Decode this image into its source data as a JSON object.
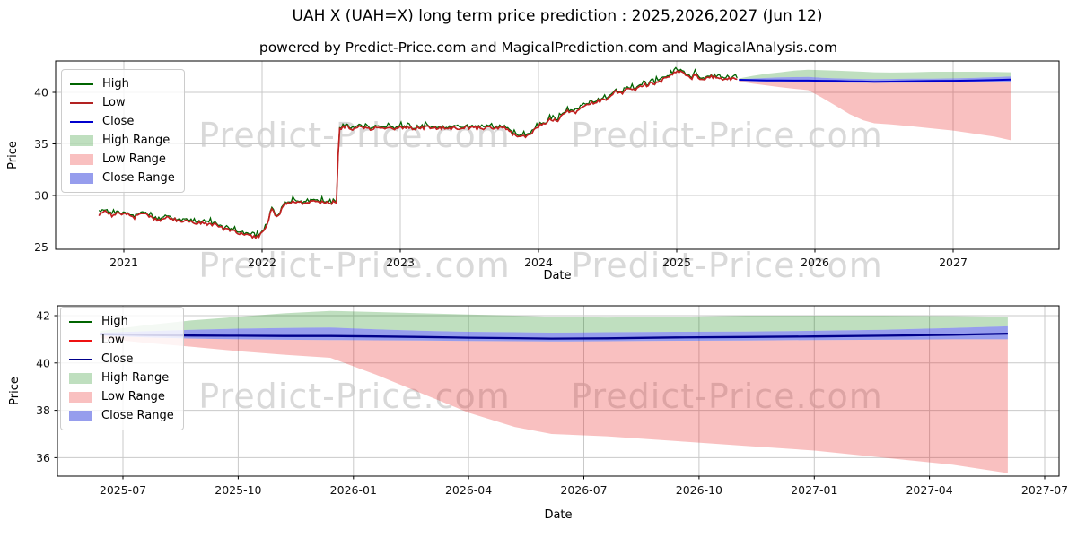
{
  "header": {
    "title": "UAH X (UAH=X) long term price prediction : 2025,2026,2027 (Jun 12)",
    "subtitle": "powered by Predict-Price.com and MagicalPrediction.com and MagicalAnalysis.com"
  },
  "watermark": {
    "text": "Predict-Price.com"
  },
  "colors": {
    "grid": "#c9c9c9",
    "axis": "#000000",
    "high_line": "#006400",
    "low_line_top": "#c22020",
    "low_line_bottom": "#ee1111",
    "close_line_top": "#0000cd",
    "close_line_bottom": "#00008b",
    "high_range_fill": "rgba(0,128,0,0.25)",
    "low_range_fill": "rgba(235,30,30,0.28)",
    "close_range_fill": "rgba(45,60,220,0.5)"
  },
  "chart_data": [
    {
      "name": "long-term-history-and-forecast",
      "type": "line",
      "title": "",
      "xlabel": "Date",
      "ylabel": "Price",
      "x_unit": "decimal_year",
      "xlim": [
        2020.5,
        2027.77
      ],
      "ylim": [
        24.8,
        43.05
      ],
      "grid": true,
      "legend_position": "upper-left",
      "xticks": {
        "values": [
          2021,
          2022,
          2023,
          2024,
          2025,
          2026,
          2027
        ],
        "labels": [
          "2021",
          "2022",
          "2023",
          "2024",
          "2025",
          "2026",
          "2027"
        ]
      },
      "yticks": {
        "values": [
          25,
          30,
          35,
          40
        ],
        "labels": [
          "25",
          "30",
          "35",
          "40"
        ]
      },
      "legend": [
        {
          "label": "High",
          "swatch": "line",
          "color": "#006400"
        },
        {
          "label": "Low",
          "swatch": "line",
          "color": "#b22222"
        },
        {
          "label": "Close",
          "swatch": "line",
          "color": "#0000cd"
        },
        {
          "label": "High Range",
          "swatch": "patch",
          "color": "rgba(0,128,0,0.25)"
        },
        {
          "label": "Low Range",
          "swatch": "patch",
          "color": "rgba(235,30,30,0.28)"
        },
        {
          "label": "Close Range",
          "swatch": "patch",
          "color": "rgba(45,60,220,0.5)"
        }
      ],
      "history": {
        "note": "High/Low/Close nearly coincide at this scale; values are the Close keypoints",
        "x": [
          2020.82,
          2020.87,
          2020.92,
          2020.97,
          2021.02,
          2021.07,
          2021.12,
          2021.17,
          2021.22,
          2021.27,
          2021.32,
          2021.37,
          2021.42,
          2021.47,
          2021.52,
          2021.57,
          2021.62,
          2021.67,
          2021.72,
          2021.77,
          2021.82,
          2021.87,
          2021.92,
          2021.97,
          2022.0,
          2022.04,
          2022.07,
          2022.1,
          2022.13,
          2022.16,
          2022.2,
          2022.25,
          2022.3,
          2022.36,
          2022.42,
          2022.48,
          2022.53,
          2022.545,
          2022.553,
          2022.6,
          2022.65,
          2022.7,
          2022.78,
          2022.85,
          2022.92,
          2023.0,
          2023.1,
          2023.2,
          2023.3,
          2023.4,
          2023.5,
          2023.6,
          2023.7,
          2023.75,
          2023.8,
          2023.85,
          2023.9,
          2023.95,
          2024.0,
          2024.05,
          2024.1,
          2024.14,
          2024.18,
          2024.22,
          2024.26,
          2024.3,
          2024.35,
          2024.4,
          2024.45,
          2024.5,
          2024.55,
          2024.6,
          2024.65,
          2024.68,
          2024.72,
          2024.78,
          2024.84,
          2024.9,
          2024.95,
          2025.0,
          2025.03,
          2025.06,
          2025.1,
          2025.14,
          2025.18,
          2025.22,
          2025.26,
          2025.3,
          2025.35,
          2025.4,
          2025.44
        ],
        "close": [
          28.2,
          28.45,
          28.0,
          28.3,
          28.2,
          27.8,
          28.25,
          28.2,
          27.7,
          27.6,
          27.9,
          27.65,
          27.4,
          27.55,
          27.2,
          27.4,
          27.1,
          27.25,
          26.7,
          26.6,
          26.45,
          26.2,
          26.05,
          26.0,
          26.3,
          27.2,
          28.8,
          27.8,
          28.3,
          29.3,
          29.25,
          29.4,
          29.3,
          29.45,
          29.3,
          29.35,
          29.3,
          29.4,
          36.5,
          36.7,
          36.5,
          36.6,
          36.5,
          36.6,
          36.45,
          36.55,
          36.5,
          36.6,
          36.5,
          36.55,
          36.6,
          36.5,
          36.6,
          36.55,
          36.1,
          35.7,
          35.75,
          36.1,
          36.7,
          37.1,
          37.4,
          37.2,
          37.9,
          38.2,
          38.0,
          38.4,
          38.8,
          39.0,
          39.2,
          39.35,
          40.15,
          39.9,
          40.3,
          40.1,
          40.5,
          40.7,
          40.9,
          41.2,
          41.6,
          42.0,
          42.15,
          41.8,
          41.3,
          41.7,
          41.2,
          41.45,
          41.55,
          41.3,
          41.4,
          41.3,
          41.3
        ]
      },
      "forecast": {
        "x": [
          2025.45,
          2025.55,
          2025.65,
          2025.75,
          2025.85,
          2025.95,
          2026.05,
          2026.15,
          2026.25,
          2026.35,
          2026.43,
          2026.55,
          2026.7,
          2026.85,
          2027.0,
          2027.15,
          2027.3,
          2027.42
        ],
        "close": [
          41.22,
          41.18,
          41.16,
          41.15,
          41.14,
          41.14,
          41.12,
          41.1,
          41.07,
          41.05,
          41.03,
          41.04,
          41.08,
          41.1,
          41.12,
          41.15,
          41.19,
          41.24
        ],
        "close_upper": [
          41.28,
          41.34,
          41.4,
          41.45,
          41.48,
          41.5,
          41.42,
          41.36,
          41.32,
          41.3,
          41.28,
          41.3,
          41.32,
          41.33,
          41.36,
          41.4,
          41.48,
          41.55
        ],
        "close_lower": [
          41.15,
          41.08,
          41.03,
          41.0,
          40.98,
          40.97,
          40.96,
          40.95,
          40.93,
          40.92,
          40.91,
          40.92,
          40.94,
          40.95,
          40.97,
          40.98,
          41.0,
          41.0
        ],
        "high_upper": [
          41.35,
          41.6,
          41.8,
          41.95,
          42.1,
          42.2,
          42.15,
          42.1,
          42.05,
          42.0,
          41.95,
          41.92,
          41.95,
          42.0,
          42.0,
          42.0,
          41.98,
          41.95
        ],
        "low_lower": [
          41.05,
          40.85,
          40.68,
          40.5,
          40.35,
          40.22,
          39.5,
          38.7,
          37.9,
          37.3,
          37.0,
          36.9,
          36.7,
          36.5,
          36.3,
          36.0,
          35.7,
          35.35
        ]
      }
    },
    {
      "name": "forecast-zoom",
      "type": "line",
      "title": "",
      "xlabel": "Date",
      "ylabel": "Price",
      "x_unit": "decimal_year",
      "xlim": [
        2025.36,
        2027.51
      ],
      "ylim": [
        35.2,
        42.42
      ],
      "grid": true,
      "legend_position": "upper-left",
      "xticks": {
        "values": [
          2025.5,
          2025.75,
          2026.0,
          2026.25,
          2026.5,
          2026.75,
          2027.0,
          2027.25,
          2027.5
        ],
        "labels": [
          "2025-07",
          "2025-10",
          "2026-01",
          "2026-04",
          "2026-07",
          "2026-10",
          "2027-01",
          "2027-04",
          "2027-07"
        ]
      },
      "yticks": {
        "values": [
          36,
          38,
          40,
          42
        ],
        "labels": [
          "36",
          "38",
          "40",
          "42"
        ]
      },
      "legend": [
        {
          "label": "High",
          "swatch": "line",
          "color": "#006400"
        },
        {
          "label": "Low",
          "swatch": "line",
          "color": "#ee1111"
        },
        {
          "label": "Close",
          "swatch": "line",
          "color": "#00008b"
        },
        {
          "label": "High Range",
          "swatch": "patch",
          "color": "rgba(0,128,0,0.25)"
        },
        {
          "label": "Low Range",
          "swatch": "patch",
          "color": "rgba(235,30,30,0.28)"
        },
        {
          "label": "Close Range",
          "swatch": "patch",
          "color": "rgba(45,60,220,0.5)"
        }
      ],
      "forecast": {
        "x": [
          2025.45,
          2025.55,
          2025.65,
          2025.75,
          2025.85,
          2025.95,
          2026.05,
          2026.15,
          2026.25,
          2026.35,
          2026.43,
          2026.55,
          2026.7,
          2026.85,
          2027.0,
          2027.15,
          2027.3,
          2027.42
        ],
        "close": [
          41.22,
          41.18,
          41.16,
          41.15,
          41.14,
          41.14,
          41.12,
          41.1,
          41.07,
          41.05,
          41.03,
          41.04,
          41.08,
          41.1,
          41.12,
          41.15,
          41.19,
          41.24
        ],
        "close_upper": [
          41.28,
          41.34,
          41.4,
          41.45,
          41.48,
          41.5,
          41.42,
          41.36,
          41.32,
          41.3,
          41.28,
          41.3,
          41.32,
          41.33,
          41.36,
          41.4,
          41.48,
          41.55
        ],
        "close_lower": [
          41.15,
          41.08,
          41.03,
          41.0,
          40.98,
          40.97,
          40.96,
          40.95,
          40.93,
          40.92,
          40.91,
          40.92,
          40.94,
          40.95,
          40.97,
          40.98,
          41.0,
          41.0
        ],
        "high_upper": [
          41.35,
          41.6,
          41.8,
          41.95,
          42.1,
          42.2,
          42.15,
          42.1,
          42.05,
          42.0,
          41.95,
          41.92,
          41.95,
          42.0,
          42.0,
          42.0,
          41.98,
          41.95
        ],
        "low_lower": [
          41.05,
          40.85,
          40.68,
          40.5,
          40.35,
          40.22,
          39.5,
          38.7,
          37.9,
          37.3,
          37.0,
          36.9,
          36.7,
          36.5,
          36.3,
          36.0,
          35.7,
          35.35
        ]
      }
    }
  ]
}
